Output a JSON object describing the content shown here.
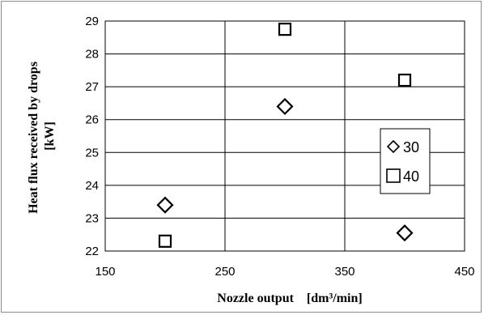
{
  "chart_data": {
    "type": "scatter",
    "xlabel": "Nozzle output",
    "xlabel_unit": "[dm³/min]",
    "ylabel_line1": "Heat flux received by drops",
    "ylabel_line2": "[kW]",
    "xlim": [
      150,
      450
    ],
    "ylim": [
      22,
      29
    ],
    "x_ticks": [
      150,
      250,
      350,
      450
    ],
    "y_ticks": [
      22,
      23,
      24,
      25,
      26,
      27,
      28,
      29
    ],
    "grid": "vertical and horizontal major gridlines",
    "legend_position": "right",
    "series": [
      {
        "name": "30",
        "marker": "diamond",
        "points": [
          {
            "x": 200,
            "y": 23.4
          },
          {
            "x": 300,
            "y": 26.4
          },
          {
            "x": 400,
            "y": 22.55
          }
        ]
      },
      {
        "name": "40",
        "marker": "square",
        "points": [
          {
            "x": 200,
            "y": 22.3
          },
          {
            "x": 300,
            "y": 28.75
          },
          {
            "x": 400,
            "y": 27.2
          }
        ]
      }
    ]
  }
}
